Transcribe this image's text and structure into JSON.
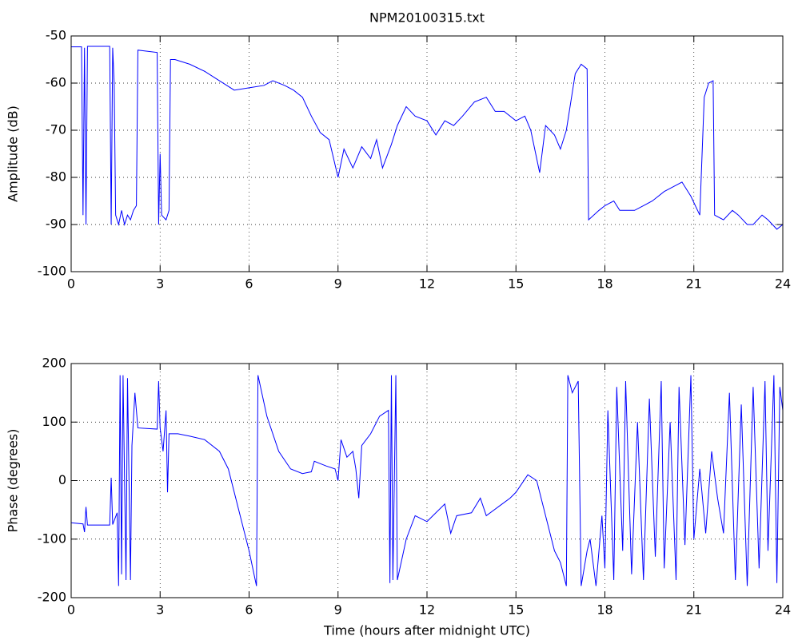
{
  "chart_data": [
    {
      "type": "line",
      "title": "NPM20100315.txt",
      "ylabel": "Amplitude (dB)",
      "color": "#0000ff",
      "grid": true,
      "xlim": [
        0,
        24
      ],
      "xticks": [
        0,
        3,
        6,
        9,
        12,
        15,
        18,
        21,
        24
      ],
      "ylim": [
        -100,
        -50
      ],
      "yticks": [
        -100,
        -90,
        -80,
        -70,
        -60,
        -50
      ],
      "x": [
        0,
        0.35,
        0.4,
        0.45,
        0.5,
        0.55,
        1.3,
        1.35,
        1.4,
        1.45,
        1.5,
        1.6,
        1.7,
        1.8,
        1.9,
        2.0,
        2.1,
        2.2,
        2.25,
        2.9,
        2.95,
        3.0,
        3.05,
        3.2,
        3.3,
        3.35,
        3.5,
        4,
        4.5,
        5,
        5.5,
        6,
        6.5,
        6.8,
        7.2,
        7.5,
        7.8,
        8.1,
        8.4,
        8.7,
        9.0,
        9.2,
        9.5,
        9.8,
        10.1,
        10.3,
        10.5,
        10.8,
        11,
        11.3,
        11.6,
        12,
        12.3,
        12.6,
        12.9,
        13.2,
        13.6,
        14,
        14.3,
        14.6,
        15,
        15.3,
        15.5,
        15.8,
        16,
        16.3,
        16.5,
        16.7,
        17,
        17.2,
        17.4,
        17.45,
        17.8,
        18,
        18.3,
        18.5,
        19,
        19.3,
        19.6,
        20,
        20.3,
        20.6,
        20.9,
        21.2,
        21.35,
        21.5,
        21.65,
        21.7,
        22,
        22.3,
        22.5,
        22.8,
        23,
        23.3,
        23.5,
        23.8,
        24
      ],
      "values": [
        -52.3,
        -52.3,
        -88,
        -52.5,
        -90,
        -52.2,
        -52.2,
        -90,
        -52.5,
        -60,
        -88,
        -90,
        -87,
        -90,
        -88,
        -89,
        -87,
        -86,
        -53,
        -53.5,
        -90,
        -75,
        -88,
        -89,
        -87,
        -55,
        -55,
        -56,
        -57.5,
        -59.5,
        -61.5,
        -61,
        -60.5,
        -59.5,
        -60.5,
        -61.5,
        -63,
        -67,
        -70.5,
        -72,
        -80,
        -74,
        -78,
        -73.5,
        -76,
        -72,
        -78,
        -73,
        -69,
        -65,
        -67,
        -68,
        -71,
        -68,
        -69,
        -67,
        -64,
        -63,
        -66,
        -66,
        -68,
        -67,
        -70,
        -79,
        -69,
        -71,
        -74,
        -70,
        -58,
        -56,
        -57,
        -89,
        -87,
        -86,
        -85,
        -87,
        -87,
        -86,
        -85,
        -83,
        -82,
        -81,
        -84,
        -88,
        -63,
        -60,
        -59.5,
        -88,
        -89,
        -87,
        -88,
        -90,
        -90,
        -88,
        -89,
        -91,
        -90
      ]
    },
    {
      "type": "line",
      "xlabel": "Time (hours after midnight UTC)",
      "ylabel": "Phase (degrees)",
      "color": "#0000ff",
      "grid": true,
      "xlim": [
        0,
        24
      ],
      "xticks": [
        0,
        3,
        6,
        9,
        12,
        15,
        18,
        21,
        24
      ],
      "ylim": [
        -200,
        200
      ],
      "yticks": [
        -200,
        -100,
        0,
        100,
        200
      ],
      "x": [
        0,
        0.4,
        0.45,
        0.5,
        0.55,
        1.3,
        1.35,
        1.4,
        1.55,
        1.6,
        1.65,
        1.7,
        1.75,
        1.85,
        1.9,
        2.0,
        2.05,
        2.15,
        2.25,
        2.9,
        2.95,
        3.0,
        3.1,
        3.2,
        3.25,
        3.3,
        3.6,
        4,
        4.5,
        5,
        5.3,
        5.6,
        6,
        6.25,
        6.3,
        6.6,
        7,
        7.4,
        7.8,
        8.1,
        8.2,
        8.6,
        8.9,
        9.0,
        9.1,
        9.3,
        9.5,
        9.6,
        9.7,
        9.8,
        10.1,
        10.4,
        10.7,
        10.75,
        10.8,
        10.85,
        10.95,
        11.0,
        11.3,
        11.6,
        12,
        12.3,
        12.6,
        12.8,
        13,
        13.5,
        13.8,
        14,
        14.4,
        14.8,
        15,
        15.4,
        15.7,
        16,
        16.3,
        16.5,
        16.7,
        16.75,
        16.9,
        17.1,
        17.2,
        17.4,
        17.5,
        17.7,
        17.9,
        18,
        18.1,
        18.3,
        18.4,
        18.6,
        18.7,
        18.9,
        19.1,
        19.3,
        19.5,
        19.7,
        19.9,
        20.0,
        20.2,
        20.4,
        20.5,
        20.7,
        20.9,
        21.0,
        21.2,
        21.4,
        21.6,
        21.8,
        22,
        22.2,
        22.4,
        22.6,
        22.8,
        23,
        23.2,
        23.4,
        23.5,
        23.7,
        23.8,
        23.9,
        24
      ],
      "values": [
        -72,
        -74,
        -88,
        -45,
        -76,
        -76,
        5,
        -75,
        -55,
        -180,
        180,
        -160,
        180,
        -170,
        175,
        -170,
        60,
        150,
        90,
        88,
        170,
        90,
        50,
        120,
        -20,
        80,
        80,
        76,
        70,
        50,
        20,
        -40,
        -120,
        -180,
        180,
        110,
        50,
        20,
        12,
        15,
        33,
        25,
        20,
        0,
        70,
        40,
        50,
        20,
        -30,
        60,
        80,
        110,
        120,
        -175,
        180,
        -170,
        180,
        -170,
        -100,
        -60,
        -70,
        -55,
        -40,
        -90,
        -60,
        -55,
        -30,
        -60,
        -45,
        -30,
        -20,
        10,
        0,
        -60,
        -120,
        -140,
        -180,
        180,
        150,
        170,
        -180,
        -120,
        -100,
        -180,
        -60,
        -150,
        120,
        -170,
        160,
        -120,
        170,
        -160,
        100,
        -170,
        140,
        -130,
        170,
        -150,
        100,
        -170,
        160,
        -110,
        180,
        -100,
        20,
        -90,
        50,
        -30,
        -90,
        150,
        -170,
        130,
        -180,
        160,
        -150,
        170,
        -120,
        180,
        -175,
        160,
        120
      ]
    }
  ]
}
